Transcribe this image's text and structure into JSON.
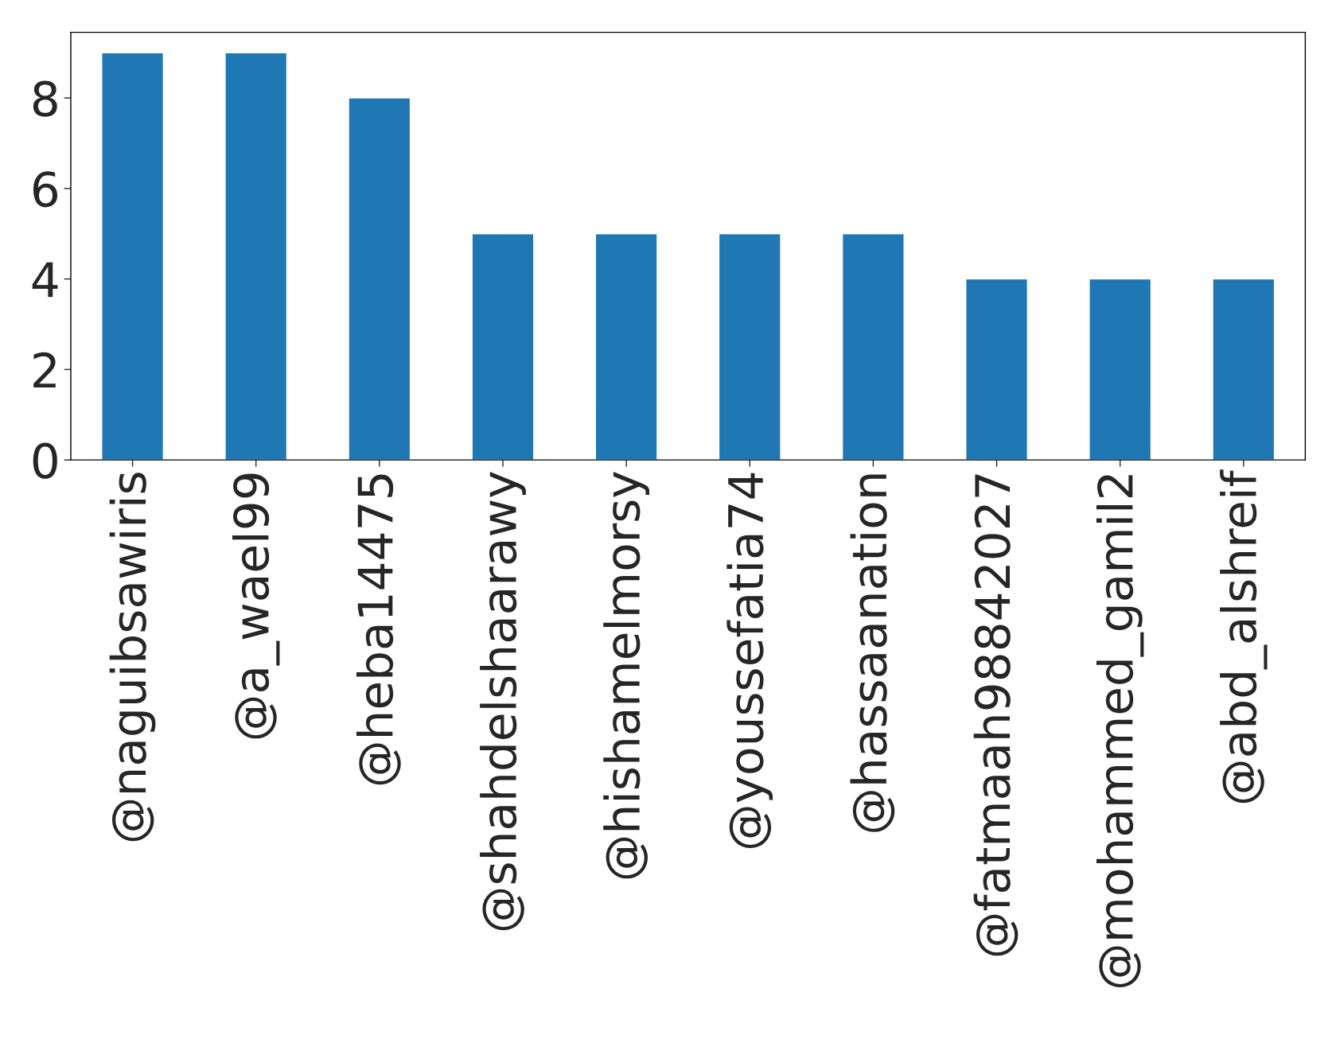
{
  "chart_data": {
    "type": "bar",
    "categories": [
      "@naguibsawiris",
      "@a_wael99",
      "@heba14475",
      "@shahdelshaarawy",
      "@hishamelmorsy",
      "@youssefatia74",
      "@hassaanation",
      "@fatmaah98842027",
      "@mohammed_gamil2",
      "@abd_alshreif"
    ],
    "values": [
      9,
      9,
      8,
      5,
      5,
      5,
      5,
      4,
      4,
      4
    ],
    "color": "#1f77b4",
    "ylim": [
      0,
      9.45
    ],
    "yticks": [
      0,
      2,
      4,
      6,
      8
    ],
    "grid": false
  }
}
